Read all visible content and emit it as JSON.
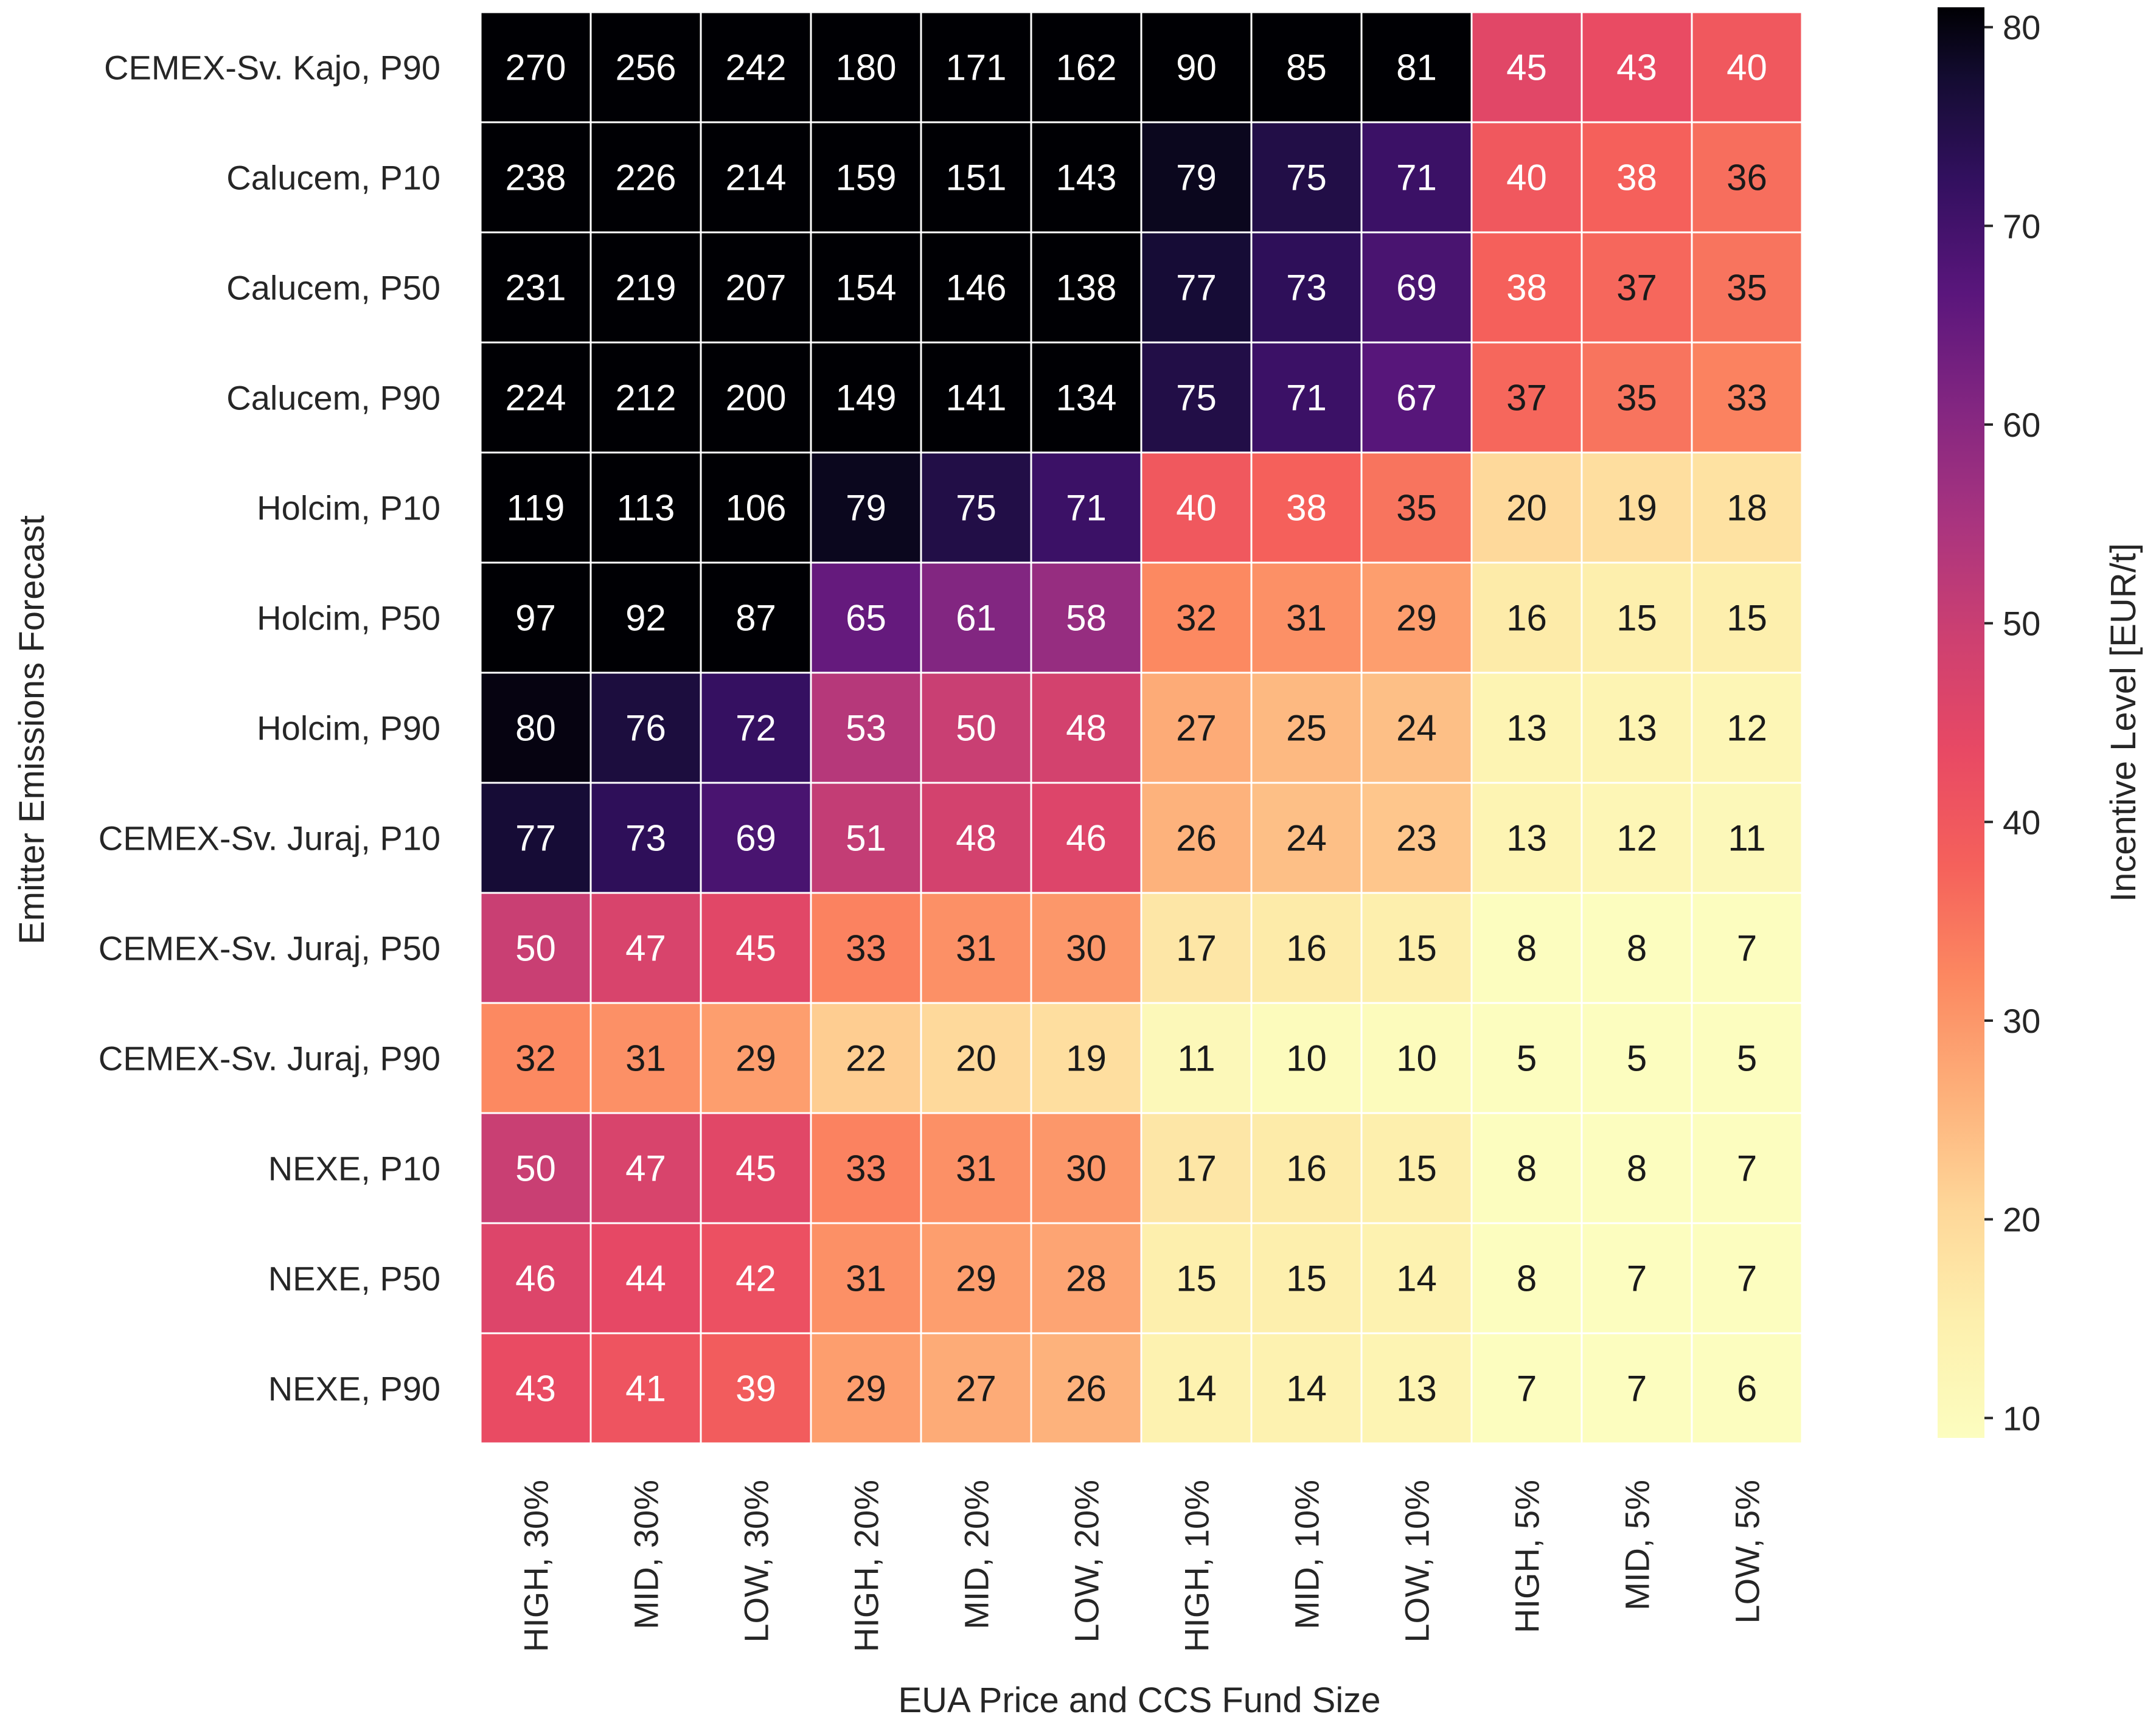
{
  "chart_data": {
    "type": "heatmap",
    "xlabel": "EUA Price and CCS Fund Size",
    "ylabel": "Emitter Emissions Forecast",
    "colorbar_label": "Incentive Level [EUR/t]",
    "colormap": "magma_r",
    "vmin": 9,
    "vmax": 81,
    "colorbar_ticks": [
      10,
      20,
      30,
      40,
      50,
      60,
      70,
      80
    ],
    "columns": [
      "HIGH, 30%",
      "MID, 30%",
      "LOW, 30%",
      "HIGH, 20%",
      "MID, 20%",
      "LOW, 20%",
      "HIGH, 10%",
      "MID, 10%",
      "LOW, 10%",
      "HIGH, 5%",
      "MID, 5%",
      "LOW, 5%"
    ],
    "rows": [
      "CEMEX-Sv. Kajo, P90",
      "Calucem, P10",
      "Calucem, P50",
      "Calucem, P90",
      "Holcim, P10",
      "Holcim, P50",
      "Holcim, P90",
      "CEMEX-Sv. Juraj, P10",
      "CEMEX-Sv. Juraj, P50",
      "CEMEX-Sv. Juraj, P90",
      "NEXE, P10",
      "NEXE, P50",
      "NEXE, P90"
    ],
    "values": [
      [
        270,
        256,
        242,
        180,
        171,
        162,
        90,
        85,
        81,
        45,
        43,
        40
      ],
      [
        238,
        226,
        214,
        159,
        151,
        143,
        79,
        75,
        71,
        40,
        38,
        36
      ],
      [
        231,
        219,
        207,
        154,
        146,
        138,
        77,
        73,
        69,
        38,
        37,
        35
      ],
      [
        224,
        212,
        200,
        149,
        141,
        134,
        75,
        71,
        67,
        37,
        35,
        33
      ],
      [
        119,
        113,
        106,
        79,
        75,
        71,
        40,
        38,
        35,
        20,
        19,
        18
      ],
      [
        97,
        92,
        87,
        65,
        61,
        58,
        32,
        31,
        29,
        16,
        15,
        15
      ],
      [
        80,
        76,
        72,
        53,
        50,
        48,
        27,
        25,
        24,
        13,
        13,
        12
      ],
      [
        77,
        73,
        69,
        51,
        48,
        46,
        26,
        24,
        23,
        13,
        12,
        11
      ],
      [
        50,
        47,
        45,
        33,
        31,
        30,
        17,
        16,
        15,
        8,
        8,
        7
      ],
      [
        32,
        31,
        29,
        22,
        20,
        19,
        11,
        10,
        10,
        5,
        5,
        5
      ],
      [
        50,
        47,
        45,
        33,
        31,
        30,
        17,
        16,
        15,
        8,
        8,
        7
      ],
      [
        46,
        44,
        42,
        31,
        29,
        28,
        15,
        15,
        14,
        8,
        7,
        7
      ],
      [
        43,
        41,
        39,
        29,
        27,
        26,
        14,
        14,
        13,
        7,
        7,
        6
      ]
    ]
  }
}
